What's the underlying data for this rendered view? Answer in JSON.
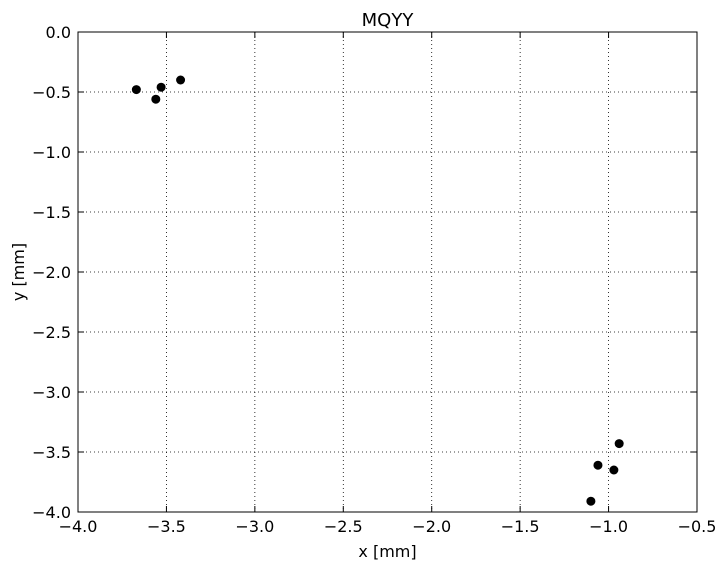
{
  "chart_data": {
    "type": "scatter",
    "title": "MQYY",
    "xlabel": "x [mm]",
    "ylabel": "y [mm]",
    "xlim": [
      -4.0,
      -0.5
    ],
    "ylim": [
      -4.0,
      0.0
    ],
    "grid": true,
    "xticks": [
      -4.0,
      -3.5,
      -3.0,
      -2.5,
      -2.0,
      -1.5,
      -1.0,
      -0.5
    ],
    "xtick_labels": [
      "−4.0",
      "−3.5",
      "−3.0",
      "−2.5",
      "−2.0",
      "−1.5",
      "−1.0",
      "−0.5"
    ],
    "yticks": [
      0.0,
      -0.5,
      -1.0,
      -1.5,
      -2.0,
      -2.5,
      -3.0,
      -3.5,
      -4.0
    ],
    "ytick_labels": [
      "0.0",
      "−0.5",
      "−1.0",
      "−1.5",
      "−2.0",
      "−2.5",
      "−3.0",
      "−3.5",
      "−4.0"
    ],
    "marker_color": "#000000",
    "series": [
      {
        "points": [
          {
            "x": -3.67,
            "y": -0.48
          },
          {
            "x": -3.53,
            "y": -0.46
          },
          {
            "x": -3.42,
            "y": -0.4
          },
          {
            "x": -3.56,
            "y": -0.56
          },
          {
            "x": -0.94,
            "y": -3.43
          },
          {
            "x": -1.06,
            "y": -3.61
          },
          {
            "x": -0.97,
            "y": -3.65
          },
          {
            "x": -1.1,
            "y": -3.91
          }
        ]
      }
    ]
  }
}
